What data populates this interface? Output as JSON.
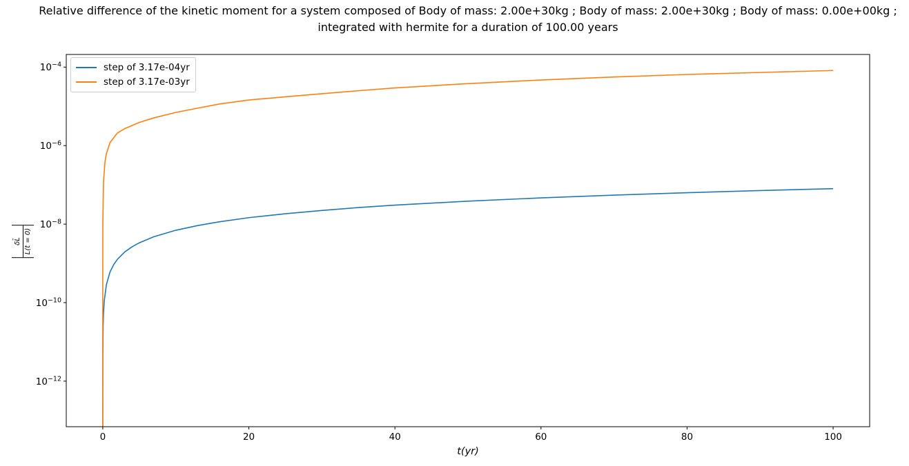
{
  "title": {
    "line1": "Relative difference of the kinetic moment for a system composed of Body of mass: 2.00e+30kg ; Body of mass: 2.00e+30kg ; Body of mass: 0.00e+00kg ;",
    "line2": "integrated with hermite for a duration of 100.00 years"
  },
  "ylabel": {
    "numerator": "δL̄",
    "denominator": "L̄(t = 0)"
  },
  "colors": {
    "series_blue": "#1f77b4",
    "series_orange": "#ff7f0e",
    "axes": "#000000",
    "legend_border": "#cccccc",
    "background": "#ffffff"
  },
  "chart_data": {
    "type": "line",
    "title": "Relative difference of the kinetic moment for a system composed of Body of mass: 2.00e+30kg ; Body of mass: 2.00e+30kg ; Body of mass: 0.00e+00kg ; integrated with hermite for a duration of 100.00 years",
    "xlabel": "t(yr)",
    "ylabel": "|δL̄ / L̄(t = 0)|",
    "grid": false,
    "legend_position": "upper left",
    "x_axis": {
      "lim": [
        -5,
        105
      ],
      "ticks": [
        0,
        20,
        40,
        60,
        80,
        100
      ]
    },
    "y_axis": {
      "scale": "log",
      "lim": [
        6.9e-14,
        0.00021
      ],
      "tick_exponents": [
        -4,
        -6,
        -8,
        -10,
        -12
      ]
    },
    "series": [
      {
        "name": "step of 3.17e-04yr",
        "color": "#1f77b4",
        "points": [
          [
            0.0002,
            7e-14
          ],
          [
            0.001,
            4e-13
          ],
          [
            0.01,
            4.6e-12
          ],
          [
            0.05,
            2.5e-11
          ],
          [
            0.1,
            5.3e-11
          ],
          [
            0.2,
            1.1e-10
          ],
          [
            0.5,
            2.9e-10
          ],
          [
            1,
            6.1e-10
          ],
          [
            1.5,
            9.3e-10
          ],
          [
            2,
            1.27e-09
          ],
          [
            3,
            1.95e-09
          ],
          [
            4,
            2.64e-09
          ],
          [
            5,
            3.34e-09
          ],
          [
            7,
            4.78e-09
          ],
          [
            10,
            6.97e-09
          ],
          [
            13,
            9.2e-09
          ],
          [
            16,
            1.15e-08
          ],
          [
            20,
            1.46e-08
          ],
          [
            25,
            1.84e-08
          ],
          [
            30,
            2.23e-08
          ],
          [
            35,
            2.64e-08
          ],
          [
            40,
            3.05e-08
          ],
          [
            50,
            3.84e-08
          ],
          [
            60,
            4.66e-08
          ],
          [
            70,
            5.48e-08
          ],
          [
            80,
            6.32e-08
          ],
          [
            90,
            7.16e-08
          ],
          [
            100,
            8e-08
          ]
        ]
      },
      {
        "name": "step of 3.17e-03yr",
        "color": "#ff7f0e",
        "points": [
          [
            5e-08,
            5e-14
          ],
          [
            0.001,
            1.1e-09
          ],
          [
            0.01,
            1.15e-08
          ],
          [
            0.1,
            1.2e-07
          ],
          [
            0.3,
            3.8e-07
          ],
          [
            0.5,
            6.3e-07
          ],
          [
            1,
            1.2e-06
          ],
          [
            2,
            2.1e-06
          ],
          [
            3,
            2.7e-06
          ],
          [
            5,
            3.9e-06
          ],
          [
            7,
            5.1e-06
          ],
          [
            10,
            7e-06
          ],
          [
            13,
            9e-06
          ],
          [
            16,
            1.15e-05
          ],
          [
            20,
            1.45e-05
          ],
          [
            25,
            1.75e-05
          ],
          [
            30,
            2.1e-05
          ],
          [
            35,
            2.5e-05
          ],
          [
            40,
            2.95e-05
          ],
          [
            50,
            3.8e-05
          ],
          [
            60,
            4.7e-05
          ],
          [
            70,
            5.6e-05
          ],
          [
            80,
            6.5e-05
          ],
          [
            90,
            7.3e-05
          ],
          [
            100,
            8.2e-05
          ]
        ]
      }
    ]
  }
}
